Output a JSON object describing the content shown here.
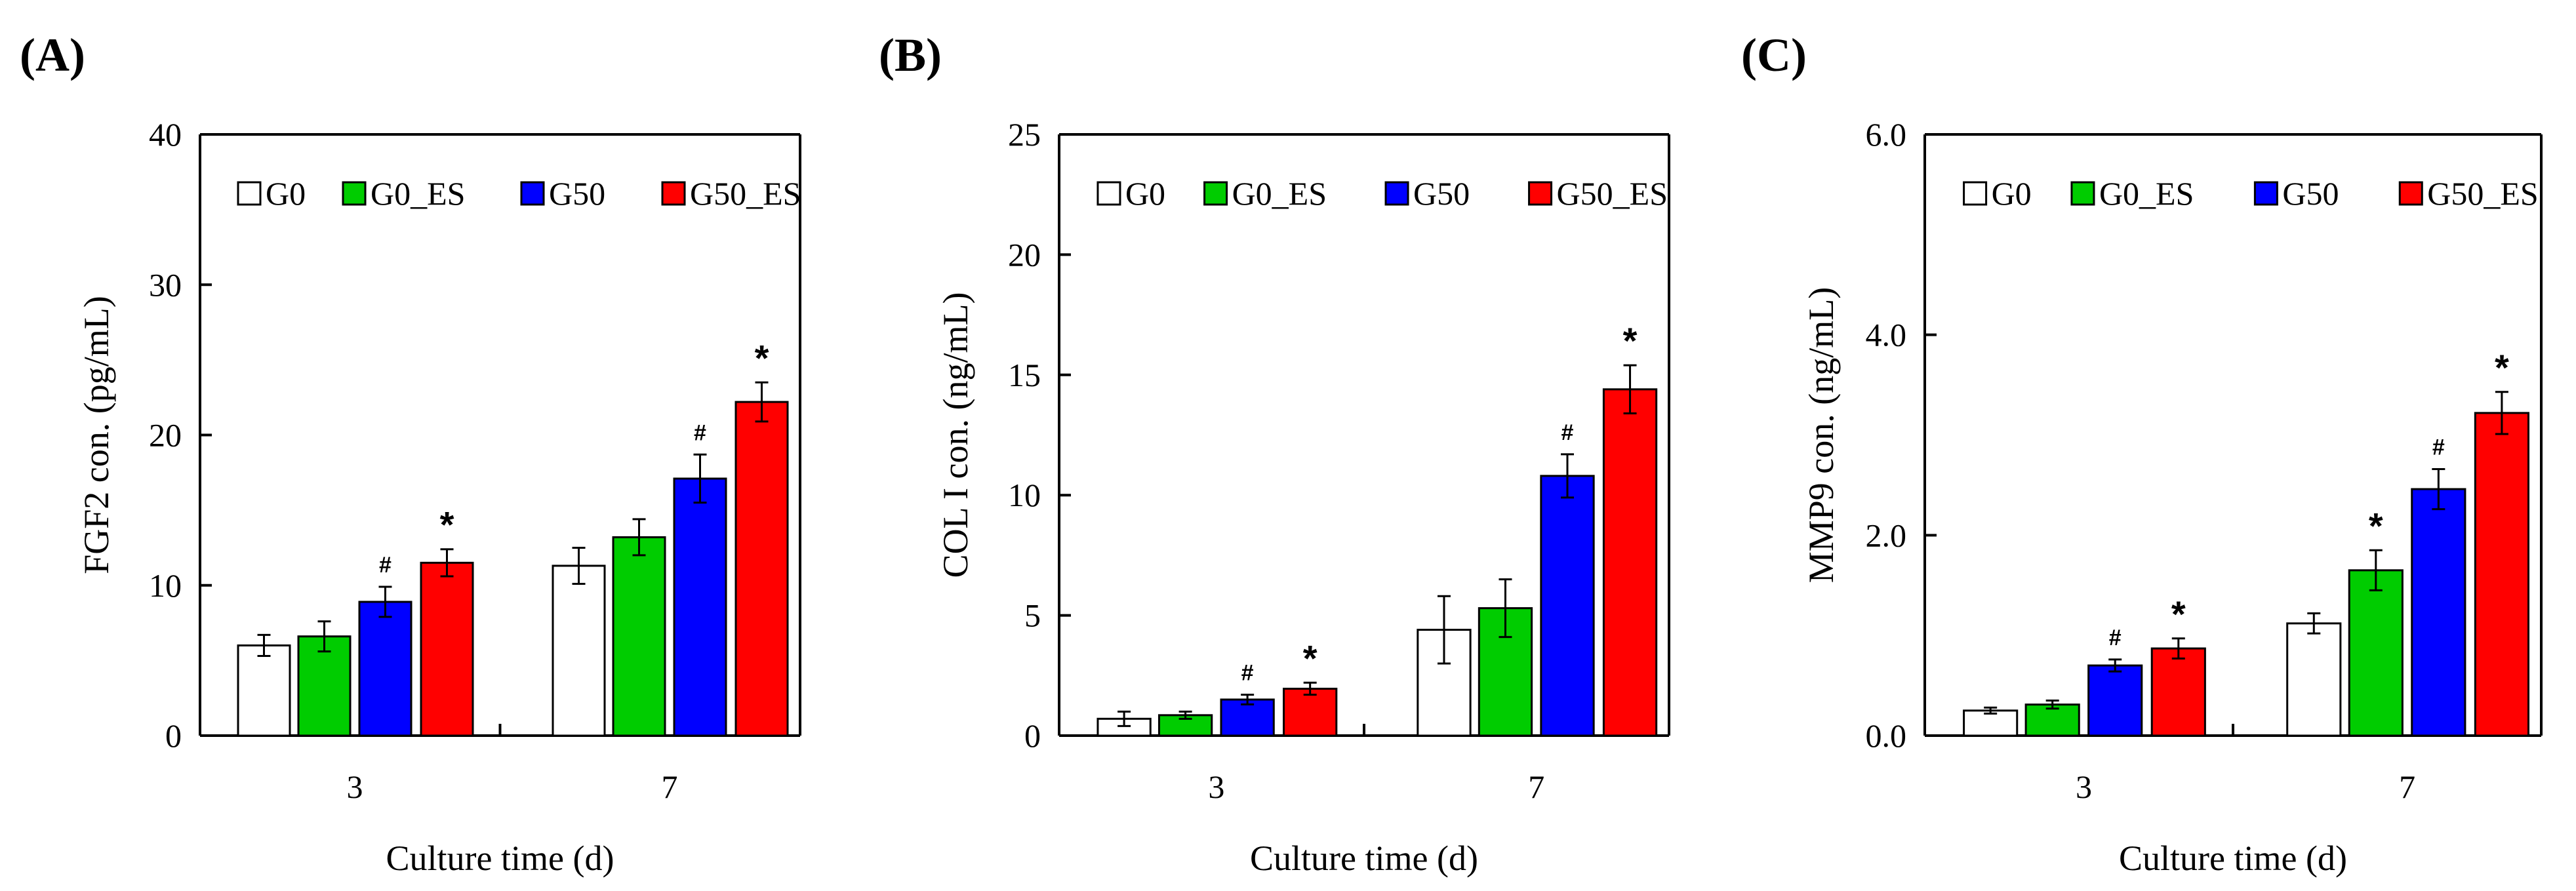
{
  "colors": {
    "G0": "#ffffff",
    "G0_ES": "#00cc00",
    "G50": "#0000ff",
    "G50_ES": "#ff0000",
    "axis": "#000000"
  },
  "chart_data": [
    {
      "type": "bar",
      "panel_label": "(A)",
      "title": "",
      "xlabel": "Culture time (d)",
      "ylabel": "FGF2 con. (pg/mL)",
      "ylim": [
        0,
        40
      ],
      "yticks": [
        "0",
        "10",
        "20",
        "30",
        "40"
      ],
      "categories": [
        "3",
        "7"
      ],
      "legend": [
        "G0",
        "G0_ES",
        "G50",
        "G50_ES"
      ],
      "series": [
        {
          "name": "G0",
          "values": [
            6.0,
            11.3
          ],
          "errors": [
            0.7,
            1.2
          ],
          "marks": [
            "",
            ""
          ]
        },
        {
          "name": "G0_ES",
          "values": [
            6.6,
            13.2
          ],
          "errors": [
            1.0,
            1.2
          ],
          "marks": [
            "",
            ""
          ]
        },
        {
          "name": "G50",
          "values": [
            8.9,
            17.1
          ],
          "errors": [
            1.0,
            1.6
          ],
          "marks": [
            "#",
            "#"
          ]
        },
        {
          "name": "G50_ES",
          "values": [
            11.5,
            22.2
          ],
          "errors": [
            0.9,
            1.3
          ],
          "marks": [
            "*",
            "*"
          ]
        }
      ]
    },
    {
      "type": "bar",
      "panel_label": "(B)",
      "title": "",
      "xlabel": "Culture time (d)",
      "ylabel": "COL I con. (ng/mL)",
      "ylim": [
        0,
        25
      ],
      "yticks": [
        "0",
        "5",
        "10",
        "15",
        "20",
        "25"
      ],
      "categories": [
        "3",
        "7"
      ],
      "legend": [
        "G0",
        "G0_ES",
        "G50",
        "G50_ES"
      ],
      "series": [
        {
          "name": "G0",
          "values": [
            0.7,
            4.4
          ],
          "errors": [
            0.3,
            1.4
          ],
          "marks": [
            "",
            ""
          ]
        },
        {
          "name": "G0_ES",
          "values": [
            0.85,
            5.3
          ],
          "errors": [
            0.15,
            1.2
          ],
          "marks": [
            "",
            ""
          ]
        },
        {
          "name": "G50",
          "values": [
            1.5,
            10.8
          ],
          "errors": [
            0.2,
            0.9
          ],
          "marks": [
            "#",
            "#"
          ]
        },
        {
          "name": "G50_ES",
          "values": [
            1.95,
            14.4
          ],
          "errors": [
            0.25,
            1.0
          ],
          "marks": [
            "*",
            "*"
          ]
        }
      ]
    },
    {
      "type": "bar",
      "panel_label": "(C)",
      "title": "",
      "xlabel": "Culture time (d)",
      "ylabel": "MMP9 con. (ng/mL)",
      "ylim": [
        0,
        6
      ],
      "yticks": [
        "0.0",
        "2.0",
        "4.0",
        "6.0"
      ],
      "categories": [
        "3",
        "7"
      ],
      "legend": [
        "G0",
        "G0_ES",
        "G50",
        "G50_ES"
      ],
      "series": [
        {
          "name": "G0",
          "values": [
            0.25,
            1.12
          ],
          "errors": [
            0.03,
            0.1
          ],
          "marks": [
            "",
            ""
          ]
        },
        {
          "name": "G0_ES",
          "values": [
            0.31,
            1.65
          ],
          "errors": [
            0.04,
            0.2
          ],
          "marks": [
            "",
            "*"
          ]
        },
        {
          "name": "G50",
          "values": [
            0.7,
            2.46
          ],
          "errors": [
            0.06,
            0.2
          ],
          "marks": [
            "#",
            "#"
          ]
        },
        {
          "name": "G50_ES",
          "values": [
            0.87,
            3.22
          ],
          "errors": [
            0.1,
            0.21
          ],
          "marks": [
            "*",
            "*"
          ]
        }
      ]
    }
  ]
}
